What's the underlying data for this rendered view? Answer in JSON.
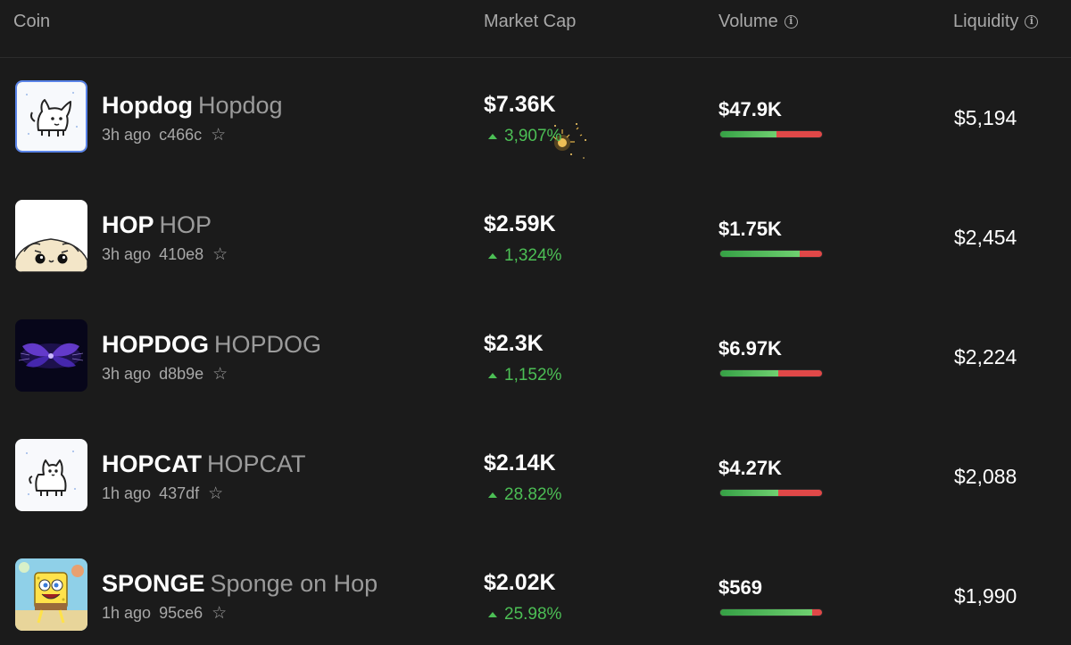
{
  "header": {
    "coin": "Coin",
    "market_cap": "Market Cap",
    "volume": "Volume",
    "liquidity": "Liquidity",
    "info_icon": "info-icon",
    "info_glyph": "i"
  },
  "colors": {
    "background": "#1b1b1b",
    "positive": "#4cbf55",
    "buy_bar": "#4cbf55",
    "sell_bar": "#e04848",
    "selected_border": "#5a84e8"
  },
  "rows": [
    {
      "ticker": "Hopdog",
      "name": "Hopdog",
      "age": "3h ago",
      "address": "c466c",
      "star": "☆",
      "market_cap": "$7.36K",
      "change": "3,907%",
      "volume": "$47.9K",
      "buy_ratio": 0.55,
      "liquidity": "$5,194",
      "avatar": "white-dog-doodle-avatar",
      "selected": true
    },
    {
      "ticker": "HOP",
      "name": "HOP",
      "age": "3h ago",
      "address": "410e8",
      "star": "☆",
      "market_cap": "$2.59K",
      "change": "1,324%",
      "volume": "$1.75K",
      "buy_ratio": 0.78,
      "liquidity": "$2,454",
      "avatar": "cream-bun-face-avatar",
      "selected": false
    },
    {
      "ticker": "HOPDOG",
      "name": "HOPDOG",
      "age": "3h ago",
      "address": "d8b9e",
      "star": "☆",
      "market_cap": "$2.3K",
      "change": "1,152%",
      "volume": "$6.97K",
      "buy_ratio": 0.57,
      "liquidity": "$2,224",
      "avatar": "purple-glow-avatar",
      "selected": false
    },
    {
      "ticker": "HOPCAT",
      "name": "HOPCAT",
      "age": "1h ago",
      "address": "437df",
      "star": "☆",
      "market_cap": "$2.14K",
      "change": "28.82%",
      "volume": "$4.27K",
      "buy_ratio": 0.57,
      "liquidity": "$2,088",
      "avatar": "white-cat-doodle-avatar",
      "selected": false
    },
    {
      "ticker": "SPONGE",
      "name": "Sponge on Hop",
      "age": "1h ago",
      "address": "95ce6",
      "star": "☆",
      "market_cap": "$2.02K",
      "change": "25.98%",
      "volume": "$569",
      "buy_ratio": 0.9,
      "liquidity": "$1,990",
      "avatar": "yellow-sponge-avatar",
      "selected": false
    }
  ]
}
